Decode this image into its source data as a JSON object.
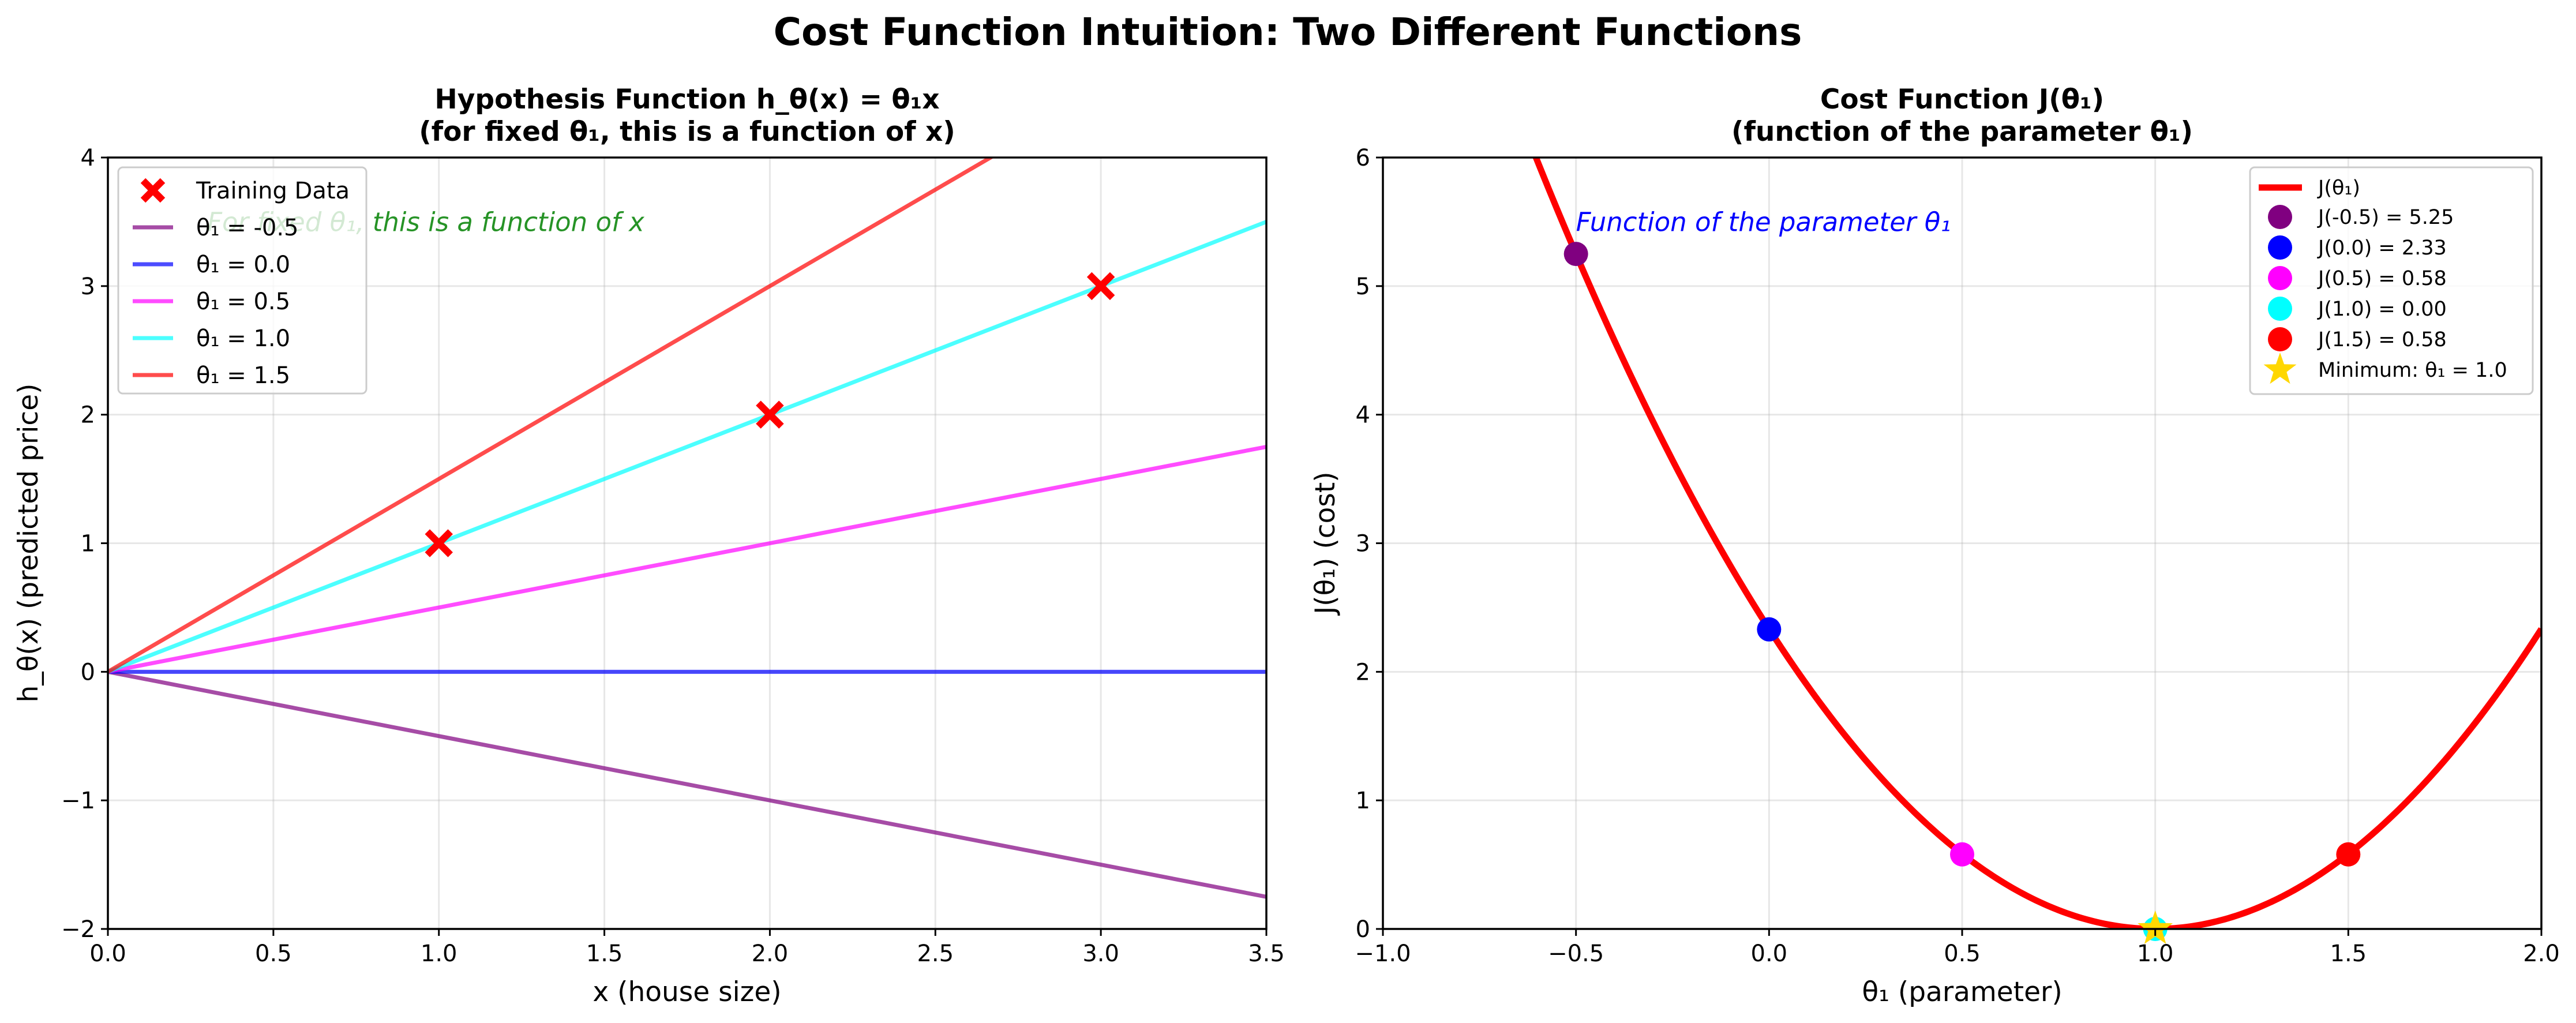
{
  "figure_title": "Cost Function Intuition: Two Different Functions",
  "chart_data": [
    {
      "type": "line",
      "title_line1": "Hypothesis Function h_θ(x) = θ₁x",
      "title_line2": "(for fixed θ₁, this is a function of x)",
      "xlabel": "x (house size)",
      "ylabel": "h_θ(x) (predicted price)",
      "xlim": [
        0,
        3.5
      ],
      "ylim": [
        -2,
        4
      ],
      "xticks": [
        0,
        0.5,
        1,
        1.5,
        2,
        2.5,
        3,
        3.5
      ],
      "xtick_labels": [
        "0.0",
        "0.5",
        "1.0",
        "1.5",
        "2.0",
        "2.5",
        "3.0",
        "3.5"
      ],
      "yticks": [
        -2,
        -1,
        0,
        1,
        2,
        3,
        4
      ],
      "ytick_labels": [
        "−2",
        "−1",
        "0",
        "1",
        "2",
        "3",
        "4"
      ],
      "grid": true,
      "legend_position": "upper-left",
      "training_data": {
        "label": "Training Data",
        "x": [
          1,
          2,
          3
        ],
        "y": [
          1,
          2,
          3
        ],
        "color": "#ff0000",
        "marker": "x"
      },
      "series": [
        {
          "name": "θ₁ = -0.5",
          "theta": -0.5,
          "x": [
            0,
            3.5
          ],
          "y": [
            0,
            -1.75
          ],
          "color": "#800080"
        },
        {
          "name": "θ₁ = 0.0",
          "theta": 0.0,
          "x": [
            0,
            3.5
          ],
          "y": [
            0,
            0
          ],
          "color": "#0000ff"
        },
        {
          "name": "θ₁ = 0.5",
          "theta": 0.5,
          "x": [
            0,
            3.5
          ],
          "y": [
            0,
            1.75
          ],
          "color": "#ff00ff"
        },
        {
          "name": "θ₁ = 1.0",
          "theta": 1.0,
          "x": [
            0,
            3.5
          ],
          "y": [
            0,
            3.5
          ],
          "color": "#00ffff"
        },
        {
          "name": "θ₁ = 1.5",
          "theta": 1.5,
          "x": [
            0,
            3.5
          ],
          "y": [
            0,
            5.25
          ],
          "color": "#ff0000"
        }
      ],
      "annotation": {
        "text": "For fixed θ₁, this is a function of x",
        "x": 0.3,
        "y": 3.5,
        "color": "#008000"
      }
    },
    {
      "type": "line",
      "title_line1": "Cost Function J(θ₁)",
      "title_line2": "(function of the parameter θ₁)",
      "xlabel": "θ₁ (parameter)",
      "ylabel": "J(θ₁) (cost)",
      "xlim": [
        -1,
        2
      ],
      "ylim": [
        0,
        6
      ],
      "xticks": [
        -1,
        -0.5,
        0,
        0.5,
        1,
        1.5,
        2
      ],
      "xtick_labels": [
        "−1.0",
        "−0.5",
        "0.0",
        "0.5",
        "1.0",
        "1.5",
        "2.0"
      ],
      "yticks": [
        0,
        1,
        2,
        3,
        4,
        5,
        6
      ],
      "ytick_labels": [
        "0",
        "1",
        "2",
        "3",
        "4",
        "5",
        "6"
      ],
      "grid": true,
      "legend_position": "upper-right",
      "curve": {
        "label": "J(θ₁)",
        "formula": "(7/3)·(1−θ₁)²",
        "coefficient": 2.3333,
        "minimum_at": 1.0,
        "color": "#ff0000"
      },
      "points": [
        {
          "label": "J(-0.5) = 5.25",
          "x": -0.5,
          "y": 5.25,
          "color": "#800080"
        },
        {
          "label": "J(0.0) = 2.33",
          "x": 0.0,
          "y": 2.33,
          "color": "#0000ff"
        },
        {
          "label": "J(0.5) = 0.58",
          "x": 0.5,
          "y": 0.58,
          "color": "#ff00ff"
        },
        {
          "label": "J(1.0) = 0.00",
          "x": 1.0,
          "y": 0.0,
          "color": "#00ffff"
        },
        {
          "label": "J(1.5) = 0.58",
          "x": 1.5,
          "y": 0.58,
          "color": "#ff0000"
        }
      ],
      "minimum": {
        "label": "Minimum: θ₁ = 1.0",
        "x": 1.0,
        "y": 0.0,
        "color": "#ffd700",
        "marker": "star"
      },
      "annotation": {
        "text": "Function of the parameter θ₁",
        "x": -0.5,
        "y": 5.5,
        "color": "#0000ff"
      }
    }
  ]
}
